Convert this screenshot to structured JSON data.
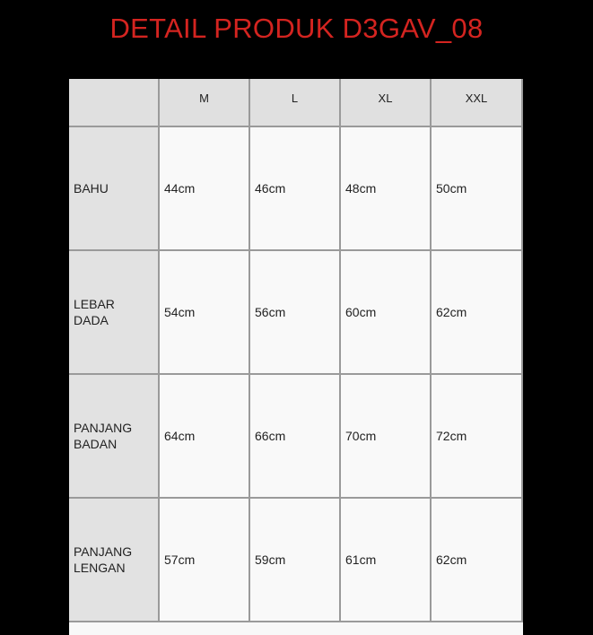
{
  "title": "DETAIL PRODUK D3GAV_08",
  "table": {
    "columns": [
      "",
      "M",
      "L",
      "XL",
      "XXL"
    ],
    "rows": [
      {
        "label": "BAHU",
        "values": [
          "44cm",
          "46cm",
          "48cm",
          "50cm"
        ]
      },
      {
        "label": "LEBAR\n DADA",
        "values": [
          "54cm",
          "56cm",
          "60cm",
          "62cm"
        ]
      },
      {
        "label": "PANJANG\nBADAN",
        "values": [
          "64cm",
          "66cm",
          "70cm",
          "72cm"
        ]
      },
      {
        "label": "PANJANG\nLENGAN",
        "values": [
          "57cm",
          "59cm",
          "61cm",
          "62cm"
        ]
      }
    ]
  },
  "colors": {
    "title": "#d42420",
    "header_bg": "#e0e0e0",
    "cell_bg": "#f9f9f9",
    "background": "#000000"
  }
}
